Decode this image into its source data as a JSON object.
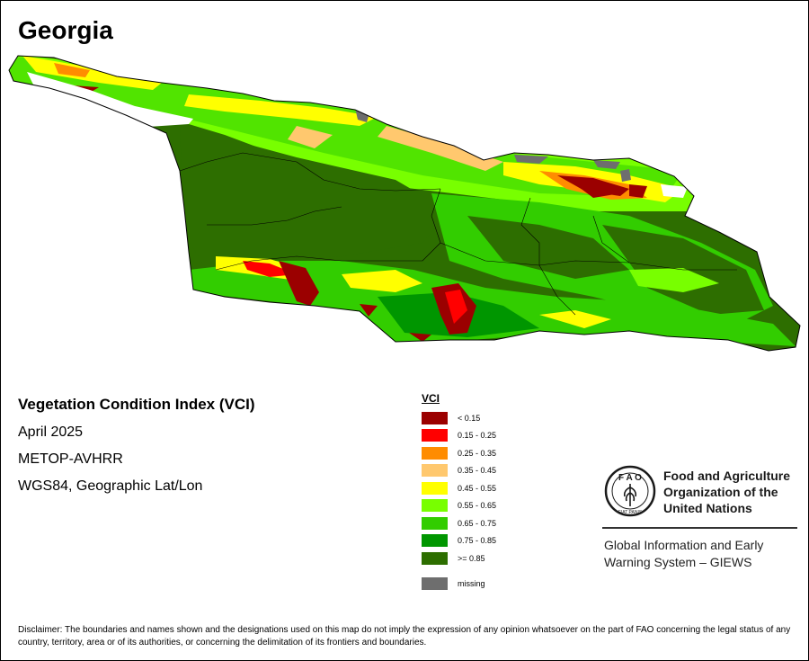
{
  "title": "Georgia",
  "info": {
    "heading": "Vegetation Condition Index (VCI)",
    "date": "April 2025",
    "sensor": "METOP-AVHRR",
    "projection": "WGS84, Geographic Lat/Lon"
  },
  "legend": {
    "title": "VCI",
    "classes": [
      {
        "label": "< 0.15",
        "color": "#9b0000"
      },
      {
        "label": "0.15 - 0.25",
        "color": "#ff0000"
      },
      {
        "label": "0.25 - 0.35",
        "color": "#ff8c00"
      },
      {
        "label": "0.35 - 0.45",
        "color": "#ffc86e"
      },
      {
        "label": "0.45 - 0.55",
        "color": "#ffff00"
      },
      {
        "label": "0.55 - 0.65",
        "color": "#78ff00"
      },
      {
        "label": "0.65 - 0.75",
        "color": "#32cd00"
      },
      {
        "label": "0.75 - 0.85",
        "color": "#009600"
      },
      {
        "label": ">= 0.85",
        "color": "#2d6e00"
      }
    ],
    "missing": {
      "label": "missing",
      "color": "#6e6e6e"
    }
  },
  "logo": {
    "org_name": "Food and Agriculture Organization of the United Nations",
    "emblem_text": "F A O",
    "motto": "FIAT PANIS",
    "system": "Global Information and Early Warning System – GIEWS"
  },
  "disclaimer": "Disclaimer: The boundaries and names shown and the designations used on this map do not imply the expression of any opinion whatsoever on the part of FAO concerning the legal status of any country, territory, area or of its authorities, or concerning the delimitation of its frontiers and boundaries."
}
